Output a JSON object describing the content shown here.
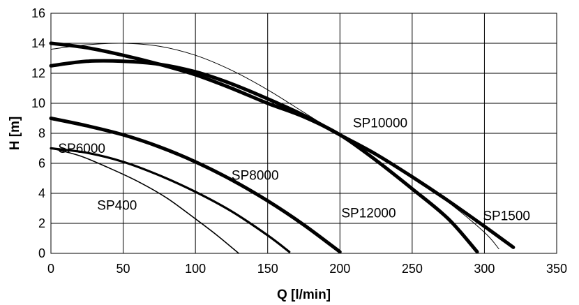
{
  "chart_data": {
    "type": "line",
    "title": "",
    "xlabel": "Q [l/min]",
    "ylabel": "H [m]",
    "xlim": [
      0,
      350
    ],
    "ylim": [
      0,
      16
    ],
    "xticks": [
      0,
      50,
      100,
      150,
      200,
      250,
      300,
      350
    ],
    "yticks": [
      0,
      2,
      4,
      6,
      8,
      10,
      12,
      14,
      16
    ],
    "grid": true,
    "legend": "none (series labeled directly on plot)",
    "series": [
      {
        "name": "SP400",
        "stroke": "thin",
        "x": [
          0,
          20,
          40,
          60,
          80,
          100,
          115,
          130
        ],
        "y": [
          7.0,
          6.5,
          5.7,
          4.8,
          3.7,
          2.3,
          1.2,
          0.0
        ]
      },
      {
        "name": "SP6000",
        "stroke": "medium",
        "x": [
          0,
          25,
          50,
          75,
          100,
          125,
          150,
          165
        ],
        "y": [
          7.0,
          6.7,
          6.1,
          5.2,
          4.1,
          2.8,
          1.2,
          0.1
        ]
      },
      {
        "name": "SP8000",
        "stroke": "thick",
        "x": [
          0,
          25,
          50,
          75,
          100,
          125,
          150,
          175,
          200
        ],
        "y": [
          9.0,
          8.5,
          7.9,
          7.1,
          6.1,
          4.9,
          3.5,
          1.9,
          0.1
        ]
      },
      {
        "name": "SP10000",
        "stroke": "hairline",
        "x": [
          0,
          25,
          50,
          75,
          100,
          125,
          150,
          175,
          200,
          225,
          250,
          275,
          300,
          310
        ],
        "y": [
          13.6,
          13.9,
          14.0,
          13.8,
          13.2,
          12.2,
          10.9,
          9.4,
          7.9,
          6.6,
          5.1,
          3.4,
          1.4,
          0.3
        ]
      },
      {
        "name": "SP12000",
        "stroke": "thick",
        "x": [
          0,
          25,
          50,
          75,
          100,
          125,
          150,
          175,
          200,
          225,
          250,
          275,
          295
        ],
        "y": [
          14.0,
          13.7,
          13.2,
          12.6,
          11.9,
          11.0,
          10.0,
          9.1,
          7.9,
          6.2,
          4.3,
          2.3,
          0.1
        ]
      },
      {
        "name": "SP1500",
        "stroke": "thick",
        "x": [
          0,
          25,
          50,
          75,
          100,
          125,
          150,
          175,
          200,
          225,
          250,
          275,
          300,
          320
        ],
        "y": [
          12.5,
          12.8,
          12.8,
          12.6,
          12.1,
          11.3,
          10.3,
          9.2,
          7.9,
          6.6,
          5.1,
          3.5,
          1.8,
          0.4
        ]
      }
    ],
    "annotations": [
      {
        "text": "SP400",
        "x": 32,
        "y": 2.9
      },
      {
        "text": "SP6000",
        "x": 5,
        "y": 6.7
      },
      {
        "text": "SP8000",
        "x": 125,
        "y": 4.9
      },
      {
        "text": "SP10000",
        "x": 209,
        "y": 8.4
      },
      {
        "text": "SP12000",
        "x": 201,
        "y": 2.4
      },
      {
        "text": "SP1500",
        "x": 299,
        "y": 2.2
      }
    ]
  }
}
